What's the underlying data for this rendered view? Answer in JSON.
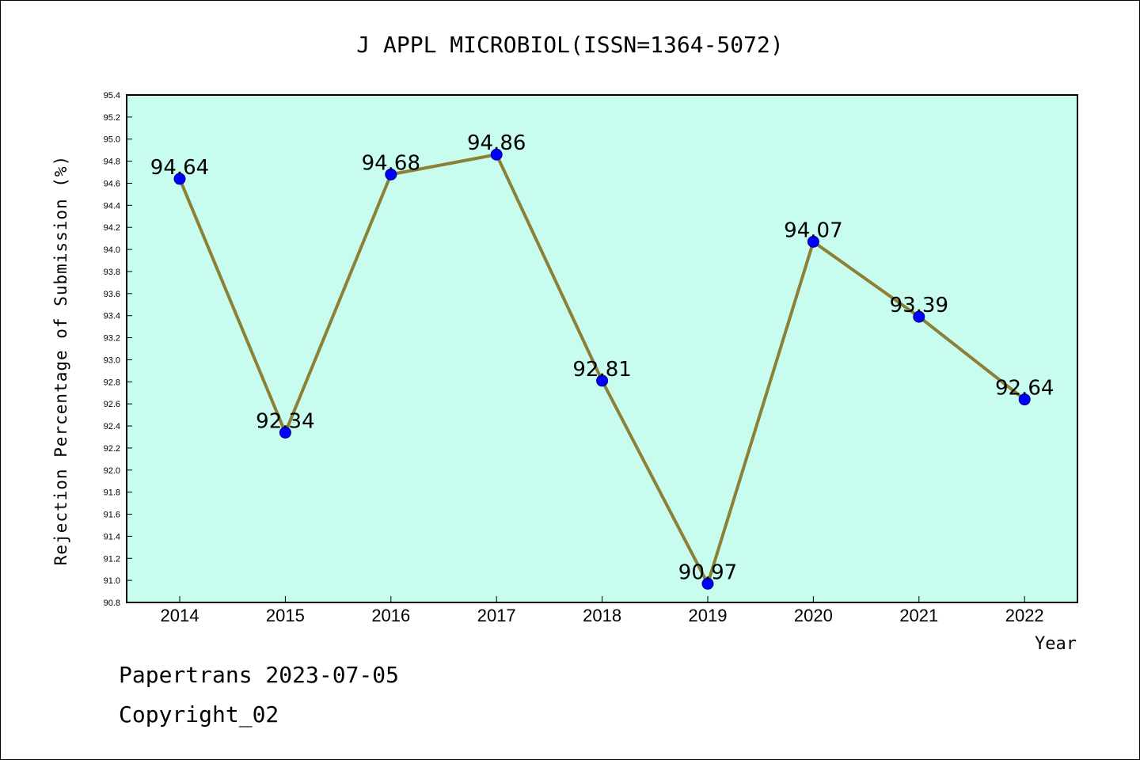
{
  "chart_data": {
    "type": "line",
    "title": "J APPL MICROBIOL(ISSN=1364-5072)",
    "xlabel": "Year",
    "ylabel": "Rejection Percentage of Submission (%)",
    "ylim": [
      90.8,
      95.4
    ],
    "ytick_step": 0.2,
    "categories": [
      "2014",
      "2015",
      "2016",
      "2017",
      "2018",
      "2019",
      "2020",
      "2021",
      "2022"
    ],
    "values": [
      94.64,
      92.34,
      94.68,
      94.86,
      92.81,
      90.97,
      94.07,
      93.39,
      92.64
    ],
    "data_labels": [
      "94.64",
      "92.34",
      "94.68",
      "94.86",
      "92.81",
      "90.97",
      "94.07",
      "93.39",
      "92.64"
    ],
    "grid": false,
    "colors": {
      "plot_background": "#c8fcee",
      "line": "#8b8037",
      "marker": "#0000ff"
    }
  },
  "footer": {
    "line1": "Papertrans 2023-07-05",
    "line2": "Copyright_02"
  }
}
